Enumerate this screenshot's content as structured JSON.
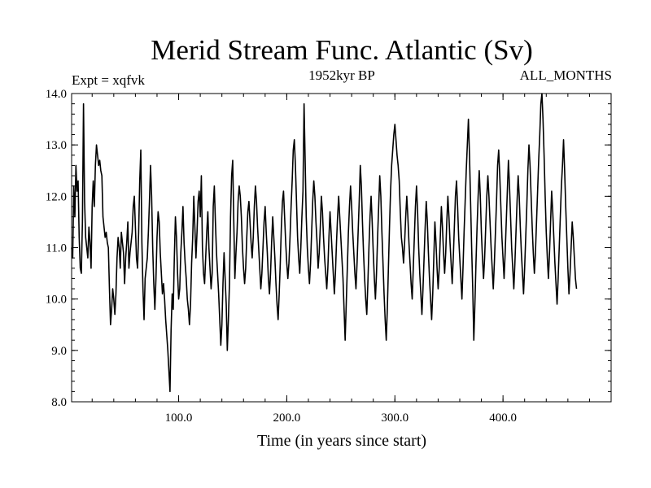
{
  "chart_data": {
    "type": "line",
    "title": "Merid Stream Func. Atlantic (Sv)",
    "subtitle": "1952kyr BP",
    "left_label": "Expt = xqfvk",
    "right_label": "ALL_MONTHS",
    "xlabel": "Time (in years since start)",
    "ylabel": "",
    "xlim": [
      1,
      500
    ],
    "ylim": [
      8.0,
      14.0
    ],
    "x_ticks": [
      100,
      200,
      300,
      400
    ],
    "x_tick_labels": [
      "100.0",
      "200.0",
      "300.0",
      "400.0"
    ],
    "y_ticks": [
      8,
      9,
      10,
      11,
      12,
      13,
      14
    ],
    "y_tick_labels": [
      "8.0",
      "9.0",
      "10.0",
      "11.0",
      "12.0",
      "13.0",
      "14.0"
    ],
    "x_start": 1,
    "x_step": 1,
    "values": [
      11.0,
      10.8,
      12.2,
      11.6,
      12.6,
      12.1,
      12.3,
      11.2,
      10.6,
      10.5,
      11.5,
      13.8,
      11.9,
      11.2,
      11.0,
      10.8,
      11.4,
      11.1,
      10.6,
      11.8,
      12.3,
      11.8,
      12.6,
      13.0,
      12.8,
      12.6,
      12.7,
      12.5,
      12.4,
      11.6,
      11.4,
      11.2,
      11.3,
      11.1,
      11.0,
      10.2,
      9.5,
      9.8,
      10.2,
      10.0,
      9.7,
      10.1,
      10.8,
      11.2,
      11.0,
      10.6,
      11.3,
      11.1,
      10.9,
      10.3,
      10.8,
      11.1,
      11.5,
      10.6,
      10.9,
      11.1,
      11.3,
      11.8,
      12.0,
      11.4,
      10.8,
      10.6,
      11.3,
      12.3,
      12.9,
      11.1,
      10.2,
      9.6,
      10.4,
      10.6,
      10.8,
      11.3,
      11.9,
      12.6,
      12.0,
      11.0,
      10.3,
      9.8,
      10.4,
      11.2,
      11.7,
      11.5,
      10.9,
      10.5,
      10.1,
      10.3,
      10.0,
      9.6,
      9.3,
      9.0,
      8.6,
      8.2,
      9.4,
      10.1,
      9.8,
      10.8,
      11.6,
      11.2,
      10.5,
      10.0,
      10.2,
      10.9,
      11.3,
      11.8,
      11.1,
      10.7,
      10.4,
      10.0,
      9.8,
      9.5,
      9.9,
      10.7,
      11.2,
      12.0,
      11.4,
      10.8,
      11.3,
      11.9,
      12.1,
      11.6,
      12.4,
      11.0,
      10.5,
      10.3,
      10.8,
      11.3,
      11.7,
      11.0,
      10.6,
      10.2,
      10.5,
      11.8,
      12.2,
      11.5,
      10.9,
      10.5,
      10.1,
      9.6,
      9.1,
      9.5,
      10.3,
      10.9,
      10.4,
      9.9,
      9.0,
      9.6,
      10.3,
      11.6,
      12.4,
      12.7,
      11.5,
      10.4,
      10.9,
      11.3,
      11.9,
      12.2,
      12.0,
      11.6,
      11.0,
      10.6,
      10.3,
      10.6,
      11.2,
      11.7,
      11.9,
      11.5,
      11.1,
      10.8,
      11.2,
      11.8,
      12.2,
      11.9,
      11.4,
      11.0,
      10.6,
      10.2,
      10.5,
      11.0,
      11.5,
      11.8,
      11.3,
      10.9,
      10.4,
      10.1,
      10.5,
      11.1,
      11.6,
      11.2,
      10.8,
      10.3,
      9.9,
      9.6,
      10.1,
      10.7,
      11.4,
      11.9,
      12.1,
      11.6,
      11.1,
      10.7,
      10.4,
      10.7,
      11.2,
      11.8,
      12.3,
      12.9,
      13.1,
      12.6,
      11.9,
      11.2,
      10.8,
      10.5,
      11.0,
      11.6,
      12.1,
      13.8,
      12.7,
      11.6,
      11.0,
      10.6,
      10.3,
      10.7,
      11.3,
      11.9,
      12.3,
      12.0,
      11.5,
      11.1,
      10.6,
      10.9,
      11.4,
      12.0,
      11.7,
      11.2,
      10.8,
      10.5,
      10.2,
      10.6,
      11.2,
      11.7,
      11.3,
      10.9,
      10.5,
      10.1,
      10.5,
      11.1,
      11.6,
      12.0,
      11.6,
      11.2,
      10.8,
      10.4,
      9.8,
      9.2,
      9.9,
      10.6,
      11.3,
      11.8,
      12.2,
      11.8,
      11.3,
      10.9,
      10.5,
      10.2,
      10.7,
      11.3,
      11.9,
      12.6,
      12.2,
      11.5,
      10.9,
      10.4,
      10.0,
      9.7,
      10.3,
      11.0,
      11.6,
      12.0,
      11.5,
      10.9,
      10.4,
      10.0,
      10.5,
      11.2,
      11.8,
      12.4,
      12.0,
      11.3,
      10.7,
      10.1,
      9.6,
      9.2,
      9.8,
      10.6,
      11.4,
      12.1,
      12.6,
      12.9,
      13.2,
      13.4,
      13.1,
      12.8,
      12.6,
      12.3,
      11.7,
      11.2,
      11.0,
      10.7,
      11.1,
      11.6,
      12.0,
      11.6,
      11.1,
      10.7,
      10.3,
      10.0,
      10.6,
      11.2,
      11.8,
      12.2,
      11.7,
      11.0,
      10.5,
      10.1,
      9.7,
      10.2,
      10.8,
      11.4,
      11.9,
      11.5,
      10.9,
      10.4,
      10.0,
      9.6,
      10.1,
      10.8,
      11.5,
      11.1,
      10.6,
      10.2,
      10.6,
      11.2,
      11.8,
      11.4,
      10.9,
      10.5,
      10.9,
      11.5,
      12.0,
      11.6,
      11.1,
      10.7,
      10.3,
      10.8,
      11.4,
      12.0,
      12.3,
      11.8,
      11.2,
      10.8,
      10.4,
      10.0,
      10.6,
      11.3,
      11.9,
      12.5,
      13.0,
      13.5,
      12.8,
      11.9,
      11.0,
      10.2,
      9.2,
      9.9,
      10.7,
      11.4,
      12.0,
      12.5,
      12.0,
      11.3,
      10.8,
      10.4,
      10.8,
      11.4,
      12.0,
      12.4,
      12.0,
      11.5,
      11.0,
      10.6,
      10.2,
      10.7,
      11.3,
      11.9,
      12.6,
      12.9,
      12.4,
      11.8,
      11.2,
      10.8,
      10.4,
      10.9,
      11.5,
      12.1,
      12.7,
      12.2,
      11.6,
      11.0,
      10.6,
      10.2,
      10.7,
      11.3,
      11.9,
      12.4,
      12.0,
      11.4,
      10.9,
      10.5,
      10.1,
      10.6,
      11.2,
      11.8,
      12.5,
      13.0,
      12.6,
      12.0,
      11.4,
      10.9,
      10.5,
      10.9,
      11.5,
      12.1,
      12.7,
      13.2,
      13.8,
      14.0,
      13.5,
      12.8,
      12.0,
      11.3,
      10.8,
      10.4,
      10.9,
      11.5,
      12.1,
      11.7,
      11.2,
      10.7,
      10.3,
      9.9,
      10.4,
      11.0,
      11.6,
      12.2,
      12.6,
      13.1,
      12.5,
      11.8,
      11.2,
      10.6,
      10.1,
      10.5,
      11.0,
      11.5,
      11.2,
      10.8,
      10.4,
      10.2
    ]
  }
}
